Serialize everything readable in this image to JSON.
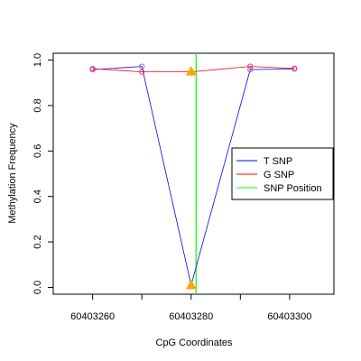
{
  "chart_data": {
    "type": "line",
    "xlabel": "CpG Coordinates",
    "ylabel": "Methylation Frequency",
    "xlim": [
      60403252,
      60403309
    ],
    "ylim": [
      -0.03,
      1.03
    ],
    "x_ticks": [
      60403260,
      60403280,
      60403300
    ],
    "y_ticks": [
      0.0,
      0.2,
      0.4,
      0.6,
      0.8,
      1.0
    ],
    "x_tick_labels": [
      "60403260",
      "60403280",
      "60403300"
    ],
    "y_tick_labels": [
      "0.0",
      "0.2",
      "0.4",
      "0.6",
      "0.8",
      "1.0"
    ],
    "grid": false,
    "legend_position": "right",
    "series": [
      {
        "name": "T SNP",
        "color": "#0000FF",
        "marker_color": "#9966CC",
        "x": [
          60403260,
          60403270,
          60403280,
          60403292,
          60403301
        ],
        "y": [
          0.958,
          0.972,
          0.01,
          0.958,
          0.961
        ]
      },
      {
        "name": "G SNP",
        "color": "#FF0000",
        "marker_color": "#E0407A",
        "x": [
          60403260,
          60403270,
          60403280,
          60403292,
          60403301
        ],
        "y": [
          0.962,
          0.948,
          0.948,
          0.972,
          0.963
        ]
      }
    ],
    "snp_marker": {
      "name": "SNP Position",
      "color": "#00FF00",
      "x": 60403281
    },
    "highlight_points": {
      "color": "#FFA500",
      "x": [
        60403280,
        60403280
      ],
      "y": [
        0.01,
        0.95
      ]
    }
  }
}
